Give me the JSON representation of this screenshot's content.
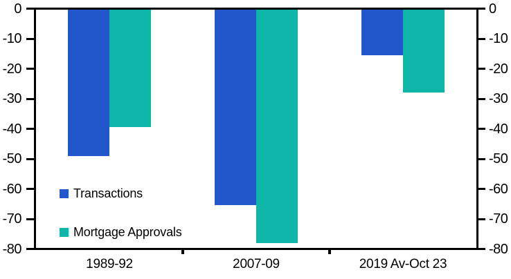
{
  "chart_data": {
    "type": "bar",
    "title": "",
    "xlabel": "",
    "ylabel": "",
    "categories": [
      "1989-92",
      "2007-09",
      "2019 Av-Oct 23"
    ],
    "series": [
      {
        "name": "Transactions",
        "color": "#2157CB",
        "values": [
          -49,
          -65.5,
          -15.5
        ]
      },
      {
        "name": "Mortgage Approvals",
        "color": "#0FB5A9",
        "values": [
          -39.5,
          -78,
          -28
        ]
      }
    ],
    "ylim": [
      -80,
      0
    ],
    "yticks": [
      0,
      -10,
      -20,
      -30,
      -40,
      -50,
      -60,
      -70,
      -80
    ],
    "y_axis_sides": [
      "left",
      "right"
    ],
    "grid": false,
    "legend_position": "inside-left",
    "axis_color": "#000000",
    "background_color": "#ffffff"
  }
}
